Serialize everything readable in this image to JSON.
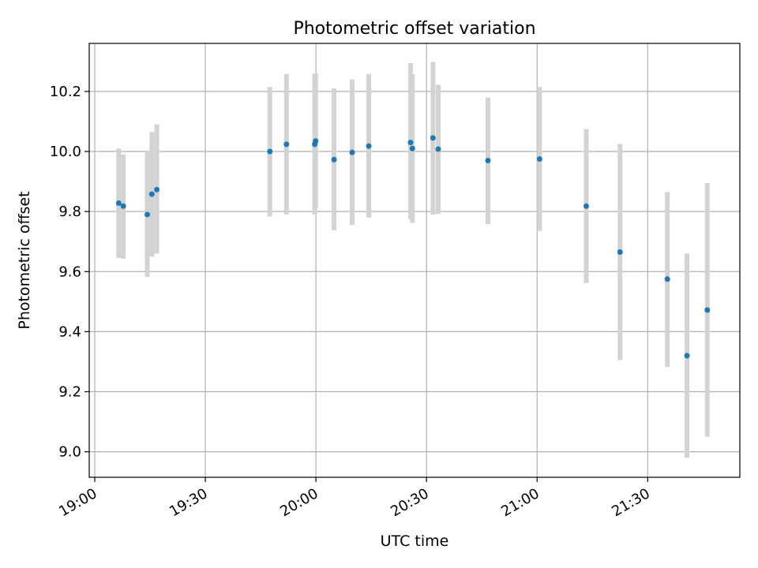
{
  "chart_data": {
    "type": "scatter",
    "title": "Photometric offset variation",
    "xlabel": "UTC time",
    "ylabel": "Photometric offset",
    "x_ticks": [
      "19:00",
      "19:30",
      "20:00",
      "20:30",
      "21:00",
      "21:30"
    ],
    "y_ticks": [
      "9.0",
      "9.2",
      "9.4",
      "9.6",
      "9.8",
      "10.0",
      "10.2"
    ],
    "xlim": [
      "18:58:30",
      "21:55:00"
    ],
    "ylim": [
      8.915,
      10.36
    ],
    "grid": true,
    "errorbar_color": "#d3d3d3",
    "point_color": "#1f77b4",
    "points": [
      {
        "t": "19:06:30",
        "y": 9.828,
        "lo": 9.645,
        "hi": 10.01
      },
      {
        "t": "19:07:45",
        "y": 9.818,
        "lo": 9.643,
        "hi": 9.99
      },
      {
        "t": "19:14:15",
        "y": 9.79,
        "lo": 9.582,
        "hi": 10.0
      },
      {
        "t": "19:15:30",
        "y": 9.858,
        "lo": 9.65,
        "hi": 10.065
      },
      {
        "t": "19:16:50",
        "y": 9.873,
        "lo": 9.66,
        "hi": 10.09
      },
      {
        "t": "19:47:30",
        "y": 10.0,
        "lo": 9.783,
        "hi": 10.215
      },
      {
        "t": "19:52:00",
        "y": 10.024,
        "lo": 9.79,
        "hi": 10.258
      },
      {
        "t": "19:59:40",
        "y": 10.024,
        "lo": 9.79,
        "hi": 10.258
      },
      {
        "t": "19:59:55",
        "y": 10.035,
        "lo": 9.81,
        "hi": 10.26
      },
      {
        "t": "20:04:55",
        "y": 9.973,
        "lo": 9.738,
        "hi": 10.21
      },
      {
        "t": "20:09:50",
        "y": 9.997,
        "lo": 9.755,
        "hi": 10.24
      },
      {
        "t": "20:14:20",
        "y": 10.018,
        "lo": 9.78,
        "hi": 10.258
      },
      {
        "t": "20:25:40",
        "y": 10.03,
        "lo": 9.775,
        "hi": 10.295
      },
      {
        "t": "20:26:10",
        "y": 10.01,
        "lo": 9.762,
        "hi": 10.258
      },
      {
        "t": "20:31:45",
        "y": 10.045,
        "lo": 9.79,
        "hi": 10.298
      },
      {
        "t": "20:33:10",
        "y": 10.008,
        "lo": 9.792,
        "hi": 10.222
      },
      {
        "t": "20:46:40",
        "y": 9.97,
        "lo": 9.758,
        "hi": 10.18
      },
      {
        "t": "21:00:40",
        "y": 9.975,
        "lo": 9.735,
        "hi": 10.215
      },
      {
        "t": "21:13:20",
        "y": 9.818,
        "lo": 9.562,
        "hi": 10.075
      },
      {
        "t": "21:22:30",
        "y": 9.665,
        "lo": 9.305,
        "hi": 10.025
      },
      {
        "t": "21:35:20",
        "y": 9.575,
        "lo": 9.282,
        "hi": 9.865
      },
      {
        "t": "21:40:40",
        "y": 9.32,
        "lo": 8.98,
        "hi": 9.66
      },
      {
        "t": "21:46:10",
        "y": 9.472,
        "lo": 9.05,
        "hi": 9.895
      }
    ]
  }
}
